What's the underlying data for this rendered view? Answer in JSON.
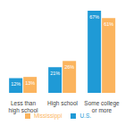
{
  "chart_data": {
    "type": "bar",
    "categories": [
      "Less than high school",
      "High school",
      "Some college or more"
    ],
    "series": [
      {
        "name": "U.S.",
        "color": "#1f9ad6",
        "values": [
          12,
          21,
          67
        ],
        "value_labels": [
          "12%",
          "21%",
          "67%"
        ]
      },
      {
        "name": "Mississippi",
        "color": "#fbb45e",
        "values": [
          13,
          26,
          61
        ],
        "value_labels": [
          "13%",
          "26%",
          "61%"
        ]
      }
    ],
    "data_labels": true,
    "tick_labels": "x",
    "legend": "bottom"
  }
}
